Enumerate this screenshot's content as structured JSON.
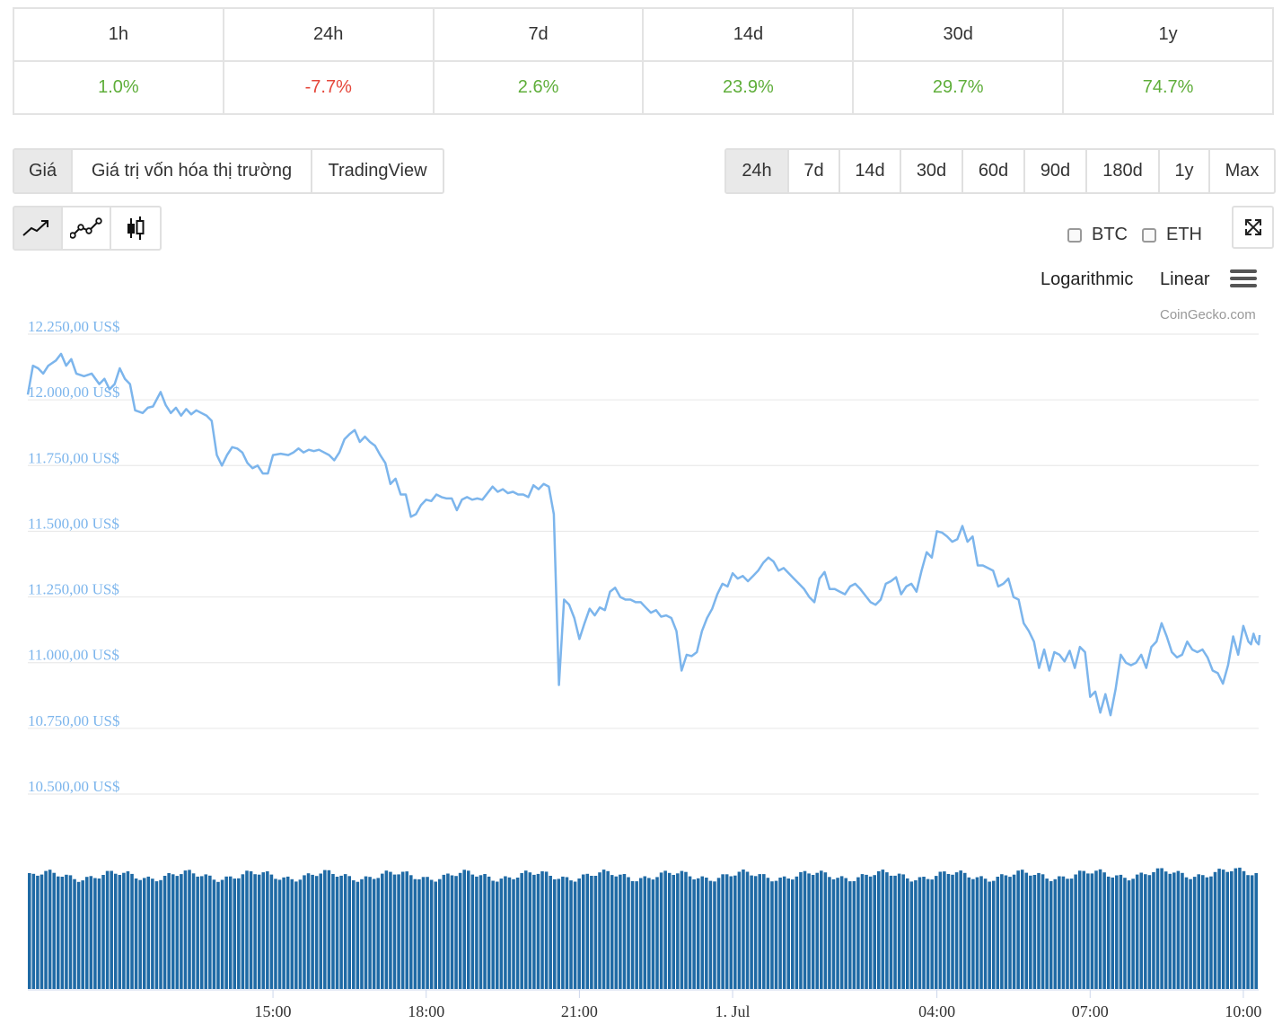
{
  "changes": {
    "headers": [
      "1h",
      "24h",
      "7d",
      "14d",
      "30d",
      "1y"
    ],
    "values": [
      {
        "text": "1.0%",
        "sign": "pos"
      },
      {
        "text": "-7.7%",
        "sign": "neg"
      },
      {
        "text": "2.6%",
        "sign": "pos"
      },
      {
        "text": "23.9%",
        "sign": "pos"
      },
      {
        "text": "29.7%",
        "sign": "pos"
      },
      {
        "text": "74.7%",
        "sign": "pos"
      }
    ]
  },
  "view_tabs": [
    "Giá",
    "Giá trị vốn hóa thị trường",
    "TradingView"
  ],
  "range_tabs": [
    "24h",
    "7d",
    "14d",
    "30d",
    "60d",
    "90d",
    "180d",
    "1y",
    "Max"
  ],
  "chart_type_icons": [
    "line-chart-icon",
    "line-markers-icon",
    "candlestick-icon"
  ],
  "compare": {
    "btc": "BTC",
    "eth": "ETH"
  },
  "scale": {
    "log": "Logarithmic",
    "linear": "Linear"
  },
  "credit": "CoinGecko.com",
  "colors": {
    "line": "#7cb5ec",
    "volume": "#1f6aa5",
    "axis_label": "#7cb5ec",
    "positive": "#5fae3a",
    "negative": "#e5473b"
  },
  "chart_data": {
    "type": "line",
    "title": "",
    "ylim": [
      10500,
      12250
    ],
    "y_ticks": [
      "12.250,00 US$",
      "12.000,00 US$",
      "11.750,00 US$",
      "11.500,00 US$",
      "11.250,00 US$",
      "11.000,00 US$",
      "10.750,00 US$",
      "10.500,00 US$"
    ],
    "y_tick_values": [
      12250,
      12000,
      11750,
      11500,
      11250,
      11000,
      10750,
      10500
    ],
    "x_ticks": [
      "15:00",
      "18:00",
      "21:00",
      "1. Jul",
      "04:00",
      "07:00",
      "10:00"
    ],
    "x_tick_hours": [
      15,
      18,
      21,
      24,
      28,
      31,
      34
    ],
    "x_range_hours": [
      10.2,
      34.3
    ],
    "grid": true,
    "legend": false,
    "series": [
      {
        "values": [
          [
            10.2,
            12020
          ],
          [
            10.3,
            12130
          ],
          [
            10.4,
            12120
          ],
          [
            10.5,
            12100
          ],
          [
            10.6,
            12130
          ],
          [
            10.75,
            12150
          ],
          [
            10.85,
            12175
          ],
          [
            10.95,
            12130
          ],
          [
            11.05,
            12155
          ],
          [
            11.15,
            12100
          ],
          [
            11.3,
            12090
          ],
          [
            11.45,
            12100
          ],
          [
            11.6,
            12060
          ],
          [
            11.7,
            12080
          ],
          [
            11.8,
            12040
          ],
          [
            11.9,
            12060
          ],
          [
            12.0,
            12120
          ],
          [
            12.1,
            12080
          ],
          [
            12.2,
            12060
          ],
          [
            12.3,
            11960
          ],
          [
            12.45,
            11950
          ],
          [
            12.55,
            11970
          ],
          [
            12.65,
            11975
          ],
          [
            12.8,
            12030
          ],
          [
            12.9,
            11980
          ],
          [
            13.0,
            11950
          ],
          [
            13.1,
            11970
          ],
          [
            13.2,
            11940
          ],
          [
            13.3,
            11965
          ],
          [
            13.4,
            11945
          ],
          [
            13.5,
            11960
          ],
          [
            13.6,
            11950
          ],
          [
            13.7,
            11940
          ],
          [
            13.8,
            11920
          ],
          [
            13.9,
            11790
          ],
          [
            14.0,
            11750
          ],
          [
            14.1,
            11790
          ],
          [
            14.2,
            11820
          ],
          [
            14.3,
            11815
          ],
          [
            14.4,
            11800
          ],
          [
            14.5,
            11760
          ],
          [
            14.6,
            11740
          ],
          [
            14.7,
            11750
          ],
          [
            14.8,
            11720
          ],
          [
            14.9,
            11720
          ],
          [
            15.0,
            11790
          ],
          [
            15.15,
            11795
          ],
          [
            15.3,
            11790
          ],
          [
            15.4,
            11800
          ],
          [
            15.5,
            11815
          ],
          [
            15.6,
            11800
          ],
          [
            15.7,
            11810
          ],
          [
            15.8,
            11805
          ],
          [
            15.9,
            11810
          ],
          [
            16.0,
            11800
          ],
          [
            16.1,
            11790
          ],
          [
            16.2,
            11770
          ],
          [
            16.3,
            11800
          ],
          [
            16.4,
            11850
          ],
          [
            16.5,
            11870
          ],
          [
            16.6,
            11885
          ],
          [
            16.7,
            11840
          ],
          [
            16.8,
            11860
          ],
          [
            16.9,
            11840
          ],
          [
            17.0,
            11825
          ],
          [
            17.1,
            11790
          ],
          [
            17.2,
            11760
          ],
          [
            17.3,
            11680
          ],
          [
            17.4,
            11700
          ],
          [
            17.5,
            11640
          ],
          [
            17.6,
            11640
          ],
          [
            17.7,
            11555
          ],
          [
            17.8,
            11565
          ],
          [
            17.9,
            11600
          ],
          [
            18.0,
            11620
          ],
          [
            18.1,
            11615
          ],
          [
            18.2,
            11640
          ],
          [
            18.3,
            11630
          ],
          [
            18.4,
            11625
          ],
          [
            18.5,
            11625
          ],
          [
            18.6,
            11580
          ],
          [
            18.7,
            11620
          ],
          [
            18.8,
            11630
          ],
          [
            18.9,
            11620
          ],
          [
            19.0,
            11625
          ],
          [
            19.1,
            11620
          ],
          [
            19.2,
            11645
          ],
          [
            19.3,
            11670
          ],
          [
            19.4,
            11650
          ],
          [
            19.5,
            11660
          ],
          [
            19.6,
            11645
          ],
          [
            19.7,
            11650
          ],
          [
            19.8,
            11640
          ],
          [
            19.9,
            11640
          ],
          [
            20.0,
            11630
          ],
          [
            20.1,
            11675
          ],
          [
            20.2,
            11660
          ],
          [
            20.3,
            11680
          ],
          [
            20.4,
            11670
          ],
          [
            20.5,
            11565
          ],
          [
            20.6,
            10915
          ],
          [
            20.7,
            11240
          ],
          [
            20.8,
            11220
          ],
          [
            20.9,
            11170
          ],
          [
            21.0,
            11090
          ],
          [
            21.1,
            11150
          ],
          [
            21.2,
            11205
          ],
          [
            21.3,
            11180
          ],
          [
            21.4,
            11210
          ],
          [
            21.5,
            11200
          ],
          [
            21.6,
            11270
          ],
          [
            21.7,
            11285
          ],
          [
            21.8,
            11250
          ],
          [
            21.9,
            11240
          ],
          [
            22.0,
            11240
          ],
          [
            22.1,
            11230
          ],
          [
            22.2,
            11230
          ],
          [
            22.3,
            11210
          ],
          [
            22.4,
            11190
          ],
          [
            22.5,
            11200
          ],
          [
            22.6,
            11175
          ],
          [
            22.7,
            11180
          ],
          [
            22.8,
            11170
          ],
          [
            22.9,
            11120
          ],
          [
            23.0,
            10970
          ],
          [
            23.1,
            11030
          ],
          [
            23.2,
            11025
          ],
          [
            23.3,
            11040
          ],
          [
            23.4,
            11120
          ],
          [
            23.5,
            11170
          ],
          [
            23.6,
            11205
          ],
          [
            23.7,
            11260
          ],
          [
            23.8,
            11300
          ],
          [
            23.9,
            11290
          ],
          [
            24.0,
            11340
          ],
          [
            24.1,
            11320
          ],
          [
            24.2,
            11330
          ],
          [
            24.3,
            11310
          ],
          [
            24.4,
            11330
          ],
          [
            24.5,
            11350
          ],
          [
            24.6,
            11380
          ],
          [
            24.7,
            11400
          ],
          [
            24.8,
            11385
          ],
          [
            24.9,
            11350
          ],
          [
            25.0,
            11360
          ],
          [
            25.1,
            11340
          ],
          [
            25.2,
            11320
          ],
          [
            25.3,
            11300
          ],
          [
            25.4,
            11280
          ],
          [
            25.5,
            11250
          ],
          [
            25.6,
            11230
          ],
          [
            25.7,
            11320
          ],
          [
            25.8,
            11345
          ],
          [
            25.9,
            11280
          ],
          [
            26.0,
            11280
          ],
          [
            26.1,
            11270
          ],
          [
            26.2,
            11260
          ],
          [
            26.3,
            11290
          ],
          [
            26.4,
            11300
          ],
          [
            26.5,
            11280
          ],
          [
            26.6,
            11255
          ],
          [
            26.7,
            11230
          ],
          [
            26.8,
            11220
          ],
          [
            26.9,
            11240
          ],
          [
            27.0,
            11300
          ],
          [
            27.1,
            11310
          ],
          [
            27.2,
            11325
          ],
          [
            27.3,
            11260
          ],
          [
            27.4,
            11290
          ],
          [
            27.5,
            11300
          ],
          [
            27.6,
            11270
          ],
          [
            27.7,
            11350
          ],
          [
            27.8,
            11420
          ],
          [
            27.9,
            11400
          ],
          [
            28.0,
            11500
          ],
          [
            28.1,
            11495
          ],
          [
            28.2,
            11480
          ],
          [
            28.3,
            11460
          ],
          [
            28.4,
            11470
          ],
          [
            28.5,
            11520
          ],
          [
            28.6,
            11460
          ],
          [
            28.7,
            11480
          ],
          [
            28.8,
            11370
          ],
          [
            28.9,
            11370
          ],
          [
            29.0,
            11360
          ],
          [
            29.1,
            11350
          ],
          [
            29.2,
            11290
          ],
          [
            29.3,
            11300
          ],
          [
            29.4,
            11320
          ],
          [
            29.5,
            11250
          ],
          [
            29.6,
            11240
          ],
          [
            29.7,
            11150
          ],
          [
            29.8,
            11120
          ],
          [
            29.9,
            11080
          ],
          [
            30.0,
            10980
          ],
          [
            30.1,
            11050
          ],
          [
            30.2,
            10970
          ],
          [
            30.3,
            11040
          ],
          [
            30.4,
            11030
          ],
          [
            30.5,
            11005
          ],
          [
            30.6,
            11045
          ],
          [
            30.7,
            10980
          ],
          [
            30.8,
            11060
          ],
          [
            30.9,
            11040
          ],
          [
            31.0,
            10870
          ],
          [
            31.1,
            10890
          ],
          [
            31.2,
            10810
          ],
          [
            31.3,
            10880
          ],
          [
            31.4,
            10800
          ],
          [
            31.5,
            10900
          ],
          [
            31.6,
            11030
          ],
          [
            31.7,
            11000
          ],
          [
            31.8,
            10990
          ],
          [
            31.9,
            11000
          ],
          [
            32.0,
            11030
          ],
          [
            32.1,
            10980
          ],
          [
            32.2,
            11060
          ],
          [
            32.3,
            11080
          ],
          [
            32.4,
            11150
          ],
          [
            32.5,
            11100
          ],
          [
            32.6,
            11040
          ],
          [
            32.7,
            11020
          ],
          [
            32.8,
            11030
          ],
          [
            32.9,
            11080
          ],
          [
            33.0,
            11050
          ],
          [
            33.1,
            11040
          ],
          [
            33.2,
            11050
          ],
          [
            33.3,
            11020
          ],
          [
            33.4,
            10970
          ],
          [
            33.5,
            10960
          ],
          [
            33.6,
            10920
          ],
          [
            33.7,
            10990
          ],
          [
            33.8,
            11100
          ],
          [
            33.9,
            11030
          ],
          [
            34.0,
            11140
          ],
          [
            34.1,
            11080
          ],
          [
            34.15,
            11070
          ],
          [
            34.2,
            11110
          ],
          [
            34.25,
            11080
          ],
          [
            34.3,
            11070
          ],
          [
            34.32,
            11105
          ]
        ]
      }
    ]
  }
}
